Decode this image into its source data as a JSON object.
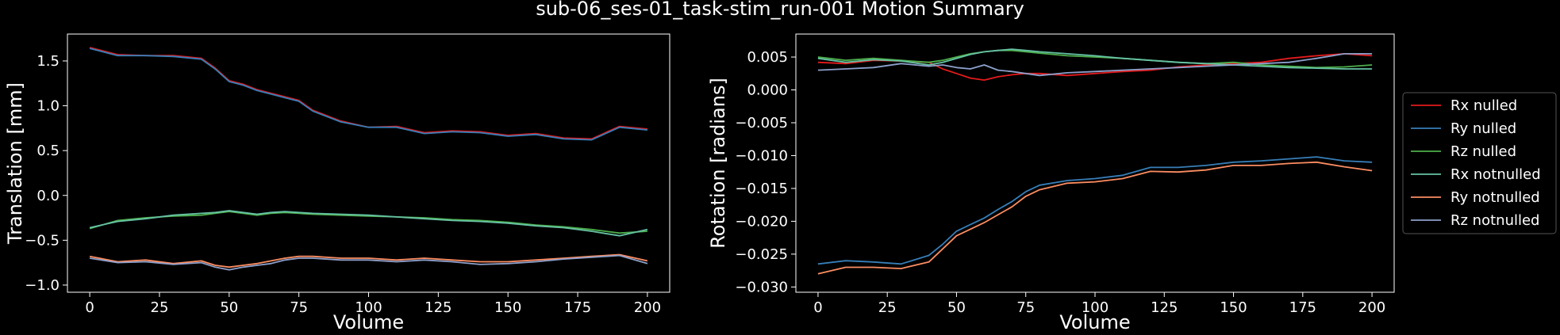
{
  "title": "sub-06_ses-01_task-stim_run-001 Motion Summary",
  "colors": {
    "background": "#000000",
    "foreground": "#ffffff",
    "series": [
      "#e41a1c",
      "#377eb8",
      "#4daf4a",
      "#66c2a5",
      "#fc8d62",
      "#8da0cb"
    ]
  },
  "chart_data": [
    {
      "type": "line",
      "title": "",
      "xlabel": "Volume",
      "ylabel": "Translation [mm]",
      "xlim": [
        -8,
        208
      ],
      "ylim": [
        -1.08,
        1.8
      ],
      "xticks": [
        0,
        25,
        50,
        75,
        100,
        125,
        150,
        175,
        200
      ],
      "xtick_labels": [
        "0",
        "25",
        "50",
        "75",
        "100",
        "125",
        "150",
        "175",
        "200"
      ],
      "yticks": [
        1.5,
        1.0,
        0.5,
        0.0,
        -0.5,
        -1.0
      ],
      "ytick_labels": [
        "1.5",
        "1.0",
        "0.5",
        "0.0",
        "−0.5",
        "−1.0"
      ],
      "x": [
        0,
        10,
        20,
        30,
        40,
        45,
        50,
        55,
        60,
        65,
        70,
        75,
        80,
        90,
        100,
        110,
        120,
        130,
        140,
        150,
        160,
        170,
        180,
        190,
        200
      ],
      "series": [
        {
          "name": "Rx nulled",
          "values": [
            1.65,
            1.57,
            1.56,
            1.56,
            1.53,
            1.42,
            1.28,
            1.24,
            1.18,
            1.14,
            1.1,
            1.06,
            0.95,
            0.83,
            0.76,
            0.77,
            0.7,
            0.72,
            0.71,
            0.67,
            0.69,
            0.64,
            0.63,
            0.77,
            0.74
          ]
        },
        {
          "name": "Ry nulled",
          "values": [
            1.64,
            1.56,
            1.56,
            1.55,
            1.52,
            1.41,
            1.27,
            1.23,
            1.17,
            1.13,
            1.09,
            1.05,
            0.94,
            0.82,
            0.76,
            0.76,
            0.69,
            0.71,
            0.7,
            0.66,
            0.68,
            0.63,
            0.62,
            0.76,
            0.73
          ]
        },
        {
          "name": "Rz nulled",
          "values": [
            -0.37,
            -0.28,
            -0.25,
            -0.23,
            -0.22,
            -0.2,
            -0.18,
            -0.2,
            -0.22,
            -0.2,
            -0.19,
            -0.2,
            -0.21,
            -0.22,
            -0.23,
            -0.24,
            -0.25,
            -0.27,
            -0.28,
            -0.3,
            -0.33,
            -0.35,
            -0.38,
            -0.42,
            -0.4
          ]
        },
        {
          "name": "Rx notnulled",
          "values": [
            -0.36,
            -0.29,
            -0.26,
            -0.22,
            -0.2,
            -0.19,
            -0.17,
            -0.19,
            -0.21,
            -0.19,
            -0.18,
            -0.19,
            -0.2,
            -0.21,
            -0.22,
            -0.24,
            -0.26,
            -0.28,
            -0.29,
            -0.31,
            -0.34,
            -0.36,
            -0.4,
            -0.45,
            -0.38
          ]
        },
        {
          "name": "Ry notnulled",
          "values": [
            -0.68,
            -0.74,
            -0.72,
            -0.76,
            -0.73,
            -0.78,
            -0.8,
            -0.78,
            -0.76,
            -0.73,
            -0.7,
            -0.68,
            -0.68,
            -0.7,
            -0.7,
            -0.72,
            -0.7,
            -0.72,
            -0.74,
            -0.74,
            -0.72,
            -0.7,
            -0.68,
            -0.66,
            -0.73
          ]
        },
        {
          "name": "Rz notnulled",
          "values": [
            -0.7,
            -0.75,
            -0.74,
            -0.77,
            -0.75,
            -0.8,
            -0.83,
            -0.8,
            -0.78,
            -0.76,
            -0.72,
            -0.7,
            -0.7,
            -0.72,
            -0.72,
            -0.74,
            -0.72,
            -0.74,
            -0.77,
            -0.76,
            -0.74,
            -0.71,
            -0.69,
            -0.67,
            -0.76
          ]
        }
      ]
    },
    {
      "type": "line",
      "title": "",
      "xlabel": "Volume",
      "ylabel": "Rotation [radians]",
      "xlim": [
        -8,
        208
      ],
      "ylim": [
        -0.0308,
        0.0085
      ],
      "xticks": [
        0,
        25,
        50,
        75,
        100,
        125,
        150,
        175,
        200
      ],
      "xtick_labels": [
        "0",
        "25",
        "50",
        "75",
        "100",
        "125",
        "150",
        "175",
        "200"
      ],
      "yticks": [
        0.005,
        0.0,
        -0.005,
        -0.01,
        -0.015,
        -0.02,
        -0.025,
        -0.03
      ],
      "ytick_labels": [
        "0.005",
        "0.000",
        "−0.005",
        "−0.010",
        "−0.015",
        "−0.020",
        "−0.025",
        "−0.030"
      ],
      "legend": {
        "position": "right"
      },
      "x": [
        0,
        10,
        20,
        30,
        40,
        45,
        50,
        55,
        60,
        65,
        70,
        75,
        80,
        90,
        100,
        110,
        120,
        130,
        140,
        150,
        160,
        170,
        180,
        190,
        200
      ],
      "series": [
        {
          "name": "Rx nulled",
          "values": [
            0.0042,
            0.004,
            0.0045,
            0.0044,
            0.0042,
            0.0032,
            0.0025,
            0.0018,
            0.0015,
            0.002,
            0.0023,
            0.0025,
            0.0025,
            0.0022,
            0.0025,
            0.0028,
            0.003,
            0.0035,
            0.0038,
            0.004,
            0.0042,
            0.0048,
            0.0052,
            0.0055,
            0.0052
          ]
        },
        {
          "name": "Ry nulled",
          "values": [
            -0.0265,
            -0.026,
            -0.0262,
            -0.0265,
            -0.0252,
            -0.0235,
            -0.0215,
            -0.0205,
            -0.0195,
            -0.0182,
            -0.017,
            -0.0155,
            -0.0145,
            -0.0138,
            -0.0135,
            -0.013,
            -0.0118,
            -0.0118,
            -0.0115,
            -0.011,
            -0.0108,
            -0.0105,
            -0.0102,
            -0.0108,
            -0.011
          ]
        },
        {
          "name": "Rz nulled",
          "values": [
            0.005,
            0.0045,
            0.0048,
            0.0045,
            0.0042,
            0.0045,
            0.005,
            0.0055,
            0.0058,
            0.006,
            0.006,
            0.0058,
            0.0056,
            0.0052,
            0.005,
            0.0048,
            0.0045,
            0.0042,
            0.004,
            0.0042,
            0.0038,
            0.0036,
            0.0034,
            0.0035,
            0.0038
          ]
        },
        {
          "name": "Rx notnulled",
          "values": [
            0.0048,
            0.0042,
            0.0046,
            0.0044,
            0.0038,
            0.0042,
            0.0048,
            0.0054,
            0.0058,
            0.006,
            0.0062,
            0.006,
            0.0058,
            0.0055,
            0.0052,
            0.0048,
            0.0045,
            0.0042,
            0.004,
            0.0038,
            0.0036,
            0.0034,
            0.0033,
            0.0032,
            0.0032
          ]
        },
        {
          "name": "Ry notnulled",
          "values": [
            -0.028,
            -0.027,
            -0.027,
            -0.0272,
            -0.0262,
            -0.0242,
            -0.0222,
            -0.0212,
            -0.0202,
            -0.019,
            -0.0178,
            -0.0162,
            -0.0152,
            -0.0142,
            -0.014,
            -0.0135,
            -0.0124,
            -0.0125,
            -0.0122,
            -0.0115,
            -0.0115,
            -0.0112,
            -0.011,
            -0.0117,
            -0.0123
          ]
        },
        {
          "name": "Rz notnulled",
          "values": [
            0.003,
            0.0032,
            0.0034,
            0.004,
            0.0036,
            0.0038,
            0.0034,
            0.0032,
            0.0038,
            0.003,
            0.0028,
            0.0025,
            0.0022,
            0.0026,
            0.0028,
            0.003,
            0.0032,
            0.0034,
            0.0036,
            0.0038,
            0.004,
            0.0042,
            0.0048,
            0.0055,
            0.0055
          ]
        }
      ]
    }
  ]
}
